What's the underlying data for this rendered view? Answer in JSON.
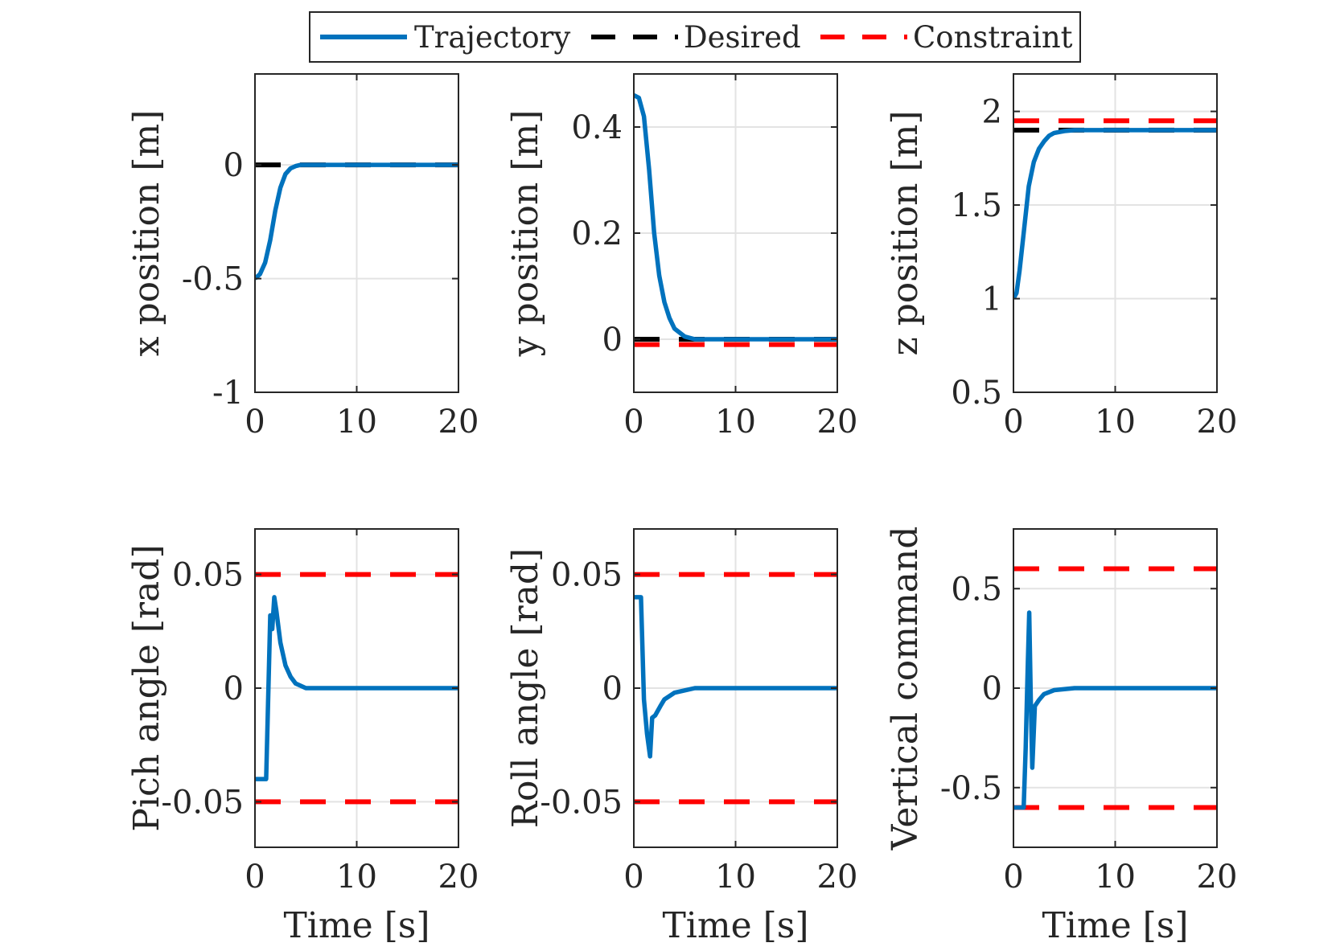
{
  "legend": {
    "placement": "top-center",
    "entries": [
      {
        "label": "Trajectory",
        "color": "#0072BD",
        "style": "solid"
      },
      {
        "label": "Desired",
        "color": "#000000",
        "style": "dashed"
      },
      {
        "label": "Constraint",
        "color": "#FF0000",
        "style": "dashed"
      }
    ]
  },
  "chart_data": [
    {
      "type": "line",
      "title": "",
      "xlabel": "",
      "ylabel": "x position [m]",
      "xlim": [
        0,
        20
      ],
      "ylim": [
        -1,
        0.4
      ],
      "grid": true,
      "xticks": [
        0,
        10,
        20
      ],
      "xtick_labels": [
        "0",
        "10",
        "20"
      ],
      "yticks": [
        -1,
        -0.5,
        0
      ],
      "ytick_labels": [
        "-1",
        "-0.5",
        "0"
      ],
      "series": [
        {
          "name": "Trajectory",
          "x": [
            0,
            0.5,
            1,
            1.5,
            2,
            2.5,
            3,
            3.5,
            4,
            4.5,
            5,
            6,
            8,
            20
          ],
          "y": [
            -0.5,
            -0.48,
            -0.43,
            -0.33,
            -0.2,
            -0.1,
            -0.04,
            -0.015,
            -0.005,
            0,
            0,
            0,
            0,
            0
          ]
        },
        {
          "name": "Desired",
          "x": [
            0,
            20
          ],
          "y": [
            0,
            0
          ]
        }
      ]
    },
    {
      "type": "line",
      "title": "",
      "xlabel": "",
      "ylabel": "y position [m]",
      "xlim": [
        0,
        20
      ],
      "ylim": [
        -0.1,
        0.5
      ],
      "grid": true,
      "xticks": [
        0,
        10,
        20
      ],
      "xtick_labels": [
        "0",
        "10",
        "20"
      ],
      "yticks": [
        0,
        0.2,
        0.4
      ],
      "ytick_labels": [
        "0",
        "0.2",
        "0.4"
      ],
      "series": [
        {
          "name": "Trajectory",
          "x": [
            0,
            0.5,
            1,
            1.5,
            2,
            2.5,
            3,
            3.5,
            4,
            5,
            6,
            8,
            20
          ],
          "y": [
            0.46,
            0.455,
            0.42,
            0.32,
            0.2,
            0.12,
            0.07,
            0.04,
            0.02,
            0.005,
            0,
            0,
            0
          ]
        },
        {
          "name": "Desired",
          "x": [
            0,
            20
          ],
          "y": [
            0,
            0
          ]
        },
        {
          "name": "Constraint",
          "x": [
            0,
            20
          ],
          "y": [
            -0.01,
            -0.01
          ]
        }
      ]
    },
    {
      "type": "line",
      "title": "",
      "xlabel": "",
      "ylabel": "z position [m]",
      "xlim": [
        0,
        20
      ],
      "ylim": [
        0.5,
        2.2
      ],
      "grid": true,
      "xticks": [
        0,
        10,
        20
      ],
      "xtick_labels": [
        "0",
        "10",
        "20"
      ],
      "yticks": [
        0.5,
        1,
        1.5,
        2
      ],
      "ytick_labels": [
        "0.5",
        "1",
        "1.5",
        "2"
      ],
      "series": [
        {
          "name": "Trajectory",
          "x": [
            0,
            0.3,
            0.6,
            1,
            1.5,
            2,
            2.5,
            3,
            3.5,
            4,
            5,
            6,
            8,
            20
          ],
          "y": [
            1.0,
            1.03,
            1.15,
            1.35,
            1.6,
            1.73,
            1.8,
            1.84,
            1.87,
            1.885,
            1.895,
            1.9,
            1.9,
            1.9
          ]
        },
        {
          "name": "Desired",
          "x": [
            0,
            20
          ],
          "y": [
            1.9,
            1.9
          ]
        },
        {
          "name": "Constraint",
          "x": [
            0,
            20
          ],
          "y": [
            1.95,
            1.95
          ]
        }
      ]
    },
    {
      "type": "line",
      "title": "",
      "xlabel": "Time [s]",
      "ylabel": "Pich angle [rad]",
      "xlim": [
        0,
        20
      ],
      "ylim": [
        -0.07,
        0.07
      ],
      "grid": true,
      "xticks": [
        0,
        10,
        20
      ],
      "xtick_labels": [
        "0",
        "10",
        "20"
      ],
      "yticks": [
        -0.05,
        0,
        0.05
      ],
      "ytick_labels": [
        "-0.05",
        "0",
        "0.05"
      ],
      "series": [
        {
          "name": "Trajectory",
          "x": [
            0,
            1.1,
            1.5,
            1.7,
            1.9,
            2.1,
            2.5,
            3,
            3.5,
            4,
            5,
            6,
            8,
            20
          ],
          "y": [
            -0.04,
            -0.04,
            0.032,
            0.026,
            0.04,
            0.034,
            0.02,
            0.01,
            0.005,
            0.002,
            0,
            0,
            0,
            0
          ]
        },
        {
          "name": "Constraint",
          "x": [
            0,
            20
          ],
          "y": [
            0.05,
            0.05
          ]
        },
        {
          "name": "Constraint",
          "x": [
            0,
            20
          ],
          "y": [
            -0.05,
            -0.05
          ]
        }
      ]
    },
    {
      "type": "line",
      "title": "",
      "xlabel": "Time [s]",
      "ylabel": "Roll angle [rad]",
      "xlim": [
        0,
        20
      ],
      "ylim": [
        -0.07,
        0.07
      ],
      "grid": true,
      "xticks": [
        0,
        10,
        20
      ],
      "xtick_labels": [
        "0",
        "10",
        "20"
      ],
      "yticks": [
        -0.05,
        0,
        0.05
      ],
      "ytick_labels": [
        "-0.05",
        "0",
        "0.05"
      ],
      "series": [
        {
          "name": "Trajectory",
          "x": [
            0,
            0.7,
            1,
            1.3,
            1.6,
            1.8,
            2.1,
            2.6,
            3,
            4,
            5,
            6,
            8,
            20
          ],
          "y": [
            0.04,
            0.04,
            -0.005,
            -0.02,
            -0.03,
            -0.013,
            -0.012,
            -0.008,
            -0.005,
            -0.002,
            -0.001,
            0,
            0,
            0
          ]
        },
        {
          "name": "Constraint",
          "x": [
            0,
            20
          ],
          "y": [
            0.05,
            0.05
          ]
        },
        {
          "name": "Constraint",
          "x": [
            0,
            20
          ],
          "y": [
            -0.05,
            -0.05
          ]
        }
      ]
    },
    {
      "type": "line",
      "title": "",
      "xlabel": "Time [s]",
      "ylabel": "Vertical command",
      "xlim": [
        0,
        20
      ],
      "ylim": [
        -0.8,
        0.8
      ],
      "grid": true,
      "xticks": [
        0,
        10,
        20
      ],
      "xtick_labels": [
        "0",
        "10",
        "20"
      ],
      "yticks": [
        -0.5,
        0,
        0.5
      ],
      "ytick_labels": [
        "-0.5",
        "0",
        "0.5"
      ],
      "series": [
        {
          "name": "Trajectory",
          "x": [
            0,
            1.0,
            1.2,
            1.4,
            1.55,
            1.7,
            1.85,
            2.1,
            2.5,
            3,
            4,
            6,
            10,
            18,
            20
          ],
          "y": [
            -0.6,
            -0.6,
            -0.3,
            0.1,
            0.38,
            -0.05,
            -0.4,
            -0.09,
            -0.06,
            -0.03,
            -0.01,
            0,
            0,
            0,
            0
          ]
        },
        {
          "name": "Constraint",
          "x": [
            0,
            20
          ],
          "y": [
            0.6,
            0.6
          ]
        },
        {
          "name": "Constraint",
          "x": [
            0,
            20
          ],
          "y": [
            -0.6,
            -0.6
          ]
        }
      ]
    }
  ]
}
